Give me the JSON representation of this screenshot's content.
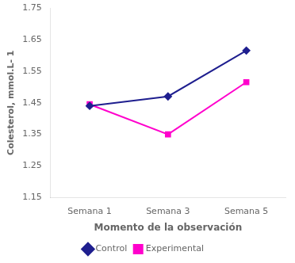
{
  "chart_data": {
    "type": "line",
    "xlabel": "Momento de la observación",
    "ylabel": "Colesterol, mmol.L- 1",
    "categories": [
      "Semana 1",
      "Semana 3",
      "Semana 5"
    ],
    "series": [
      {
        "name": "Control",
        "color": "#1f1f8f",
        "marker": "diamond",
        "values": [
          1.44,
          1.47,
          1.615
        ]
      },
      {
        "name": "Experimental",
        "color": "#ff00cc",
        "marker": "square",
        "values": [
          1.445,
          1.35,
          1.515
        ]
      }
    ],
    "ylim": [
      1.15,
      1.75
    ],
    "yticks": [
      1.15,
      1.25,
      1.35,
      1.45,
      1.55,
      1.65,
      1.75
    ],
    "grid": false,
    "legend": "bottom"
  }
}
